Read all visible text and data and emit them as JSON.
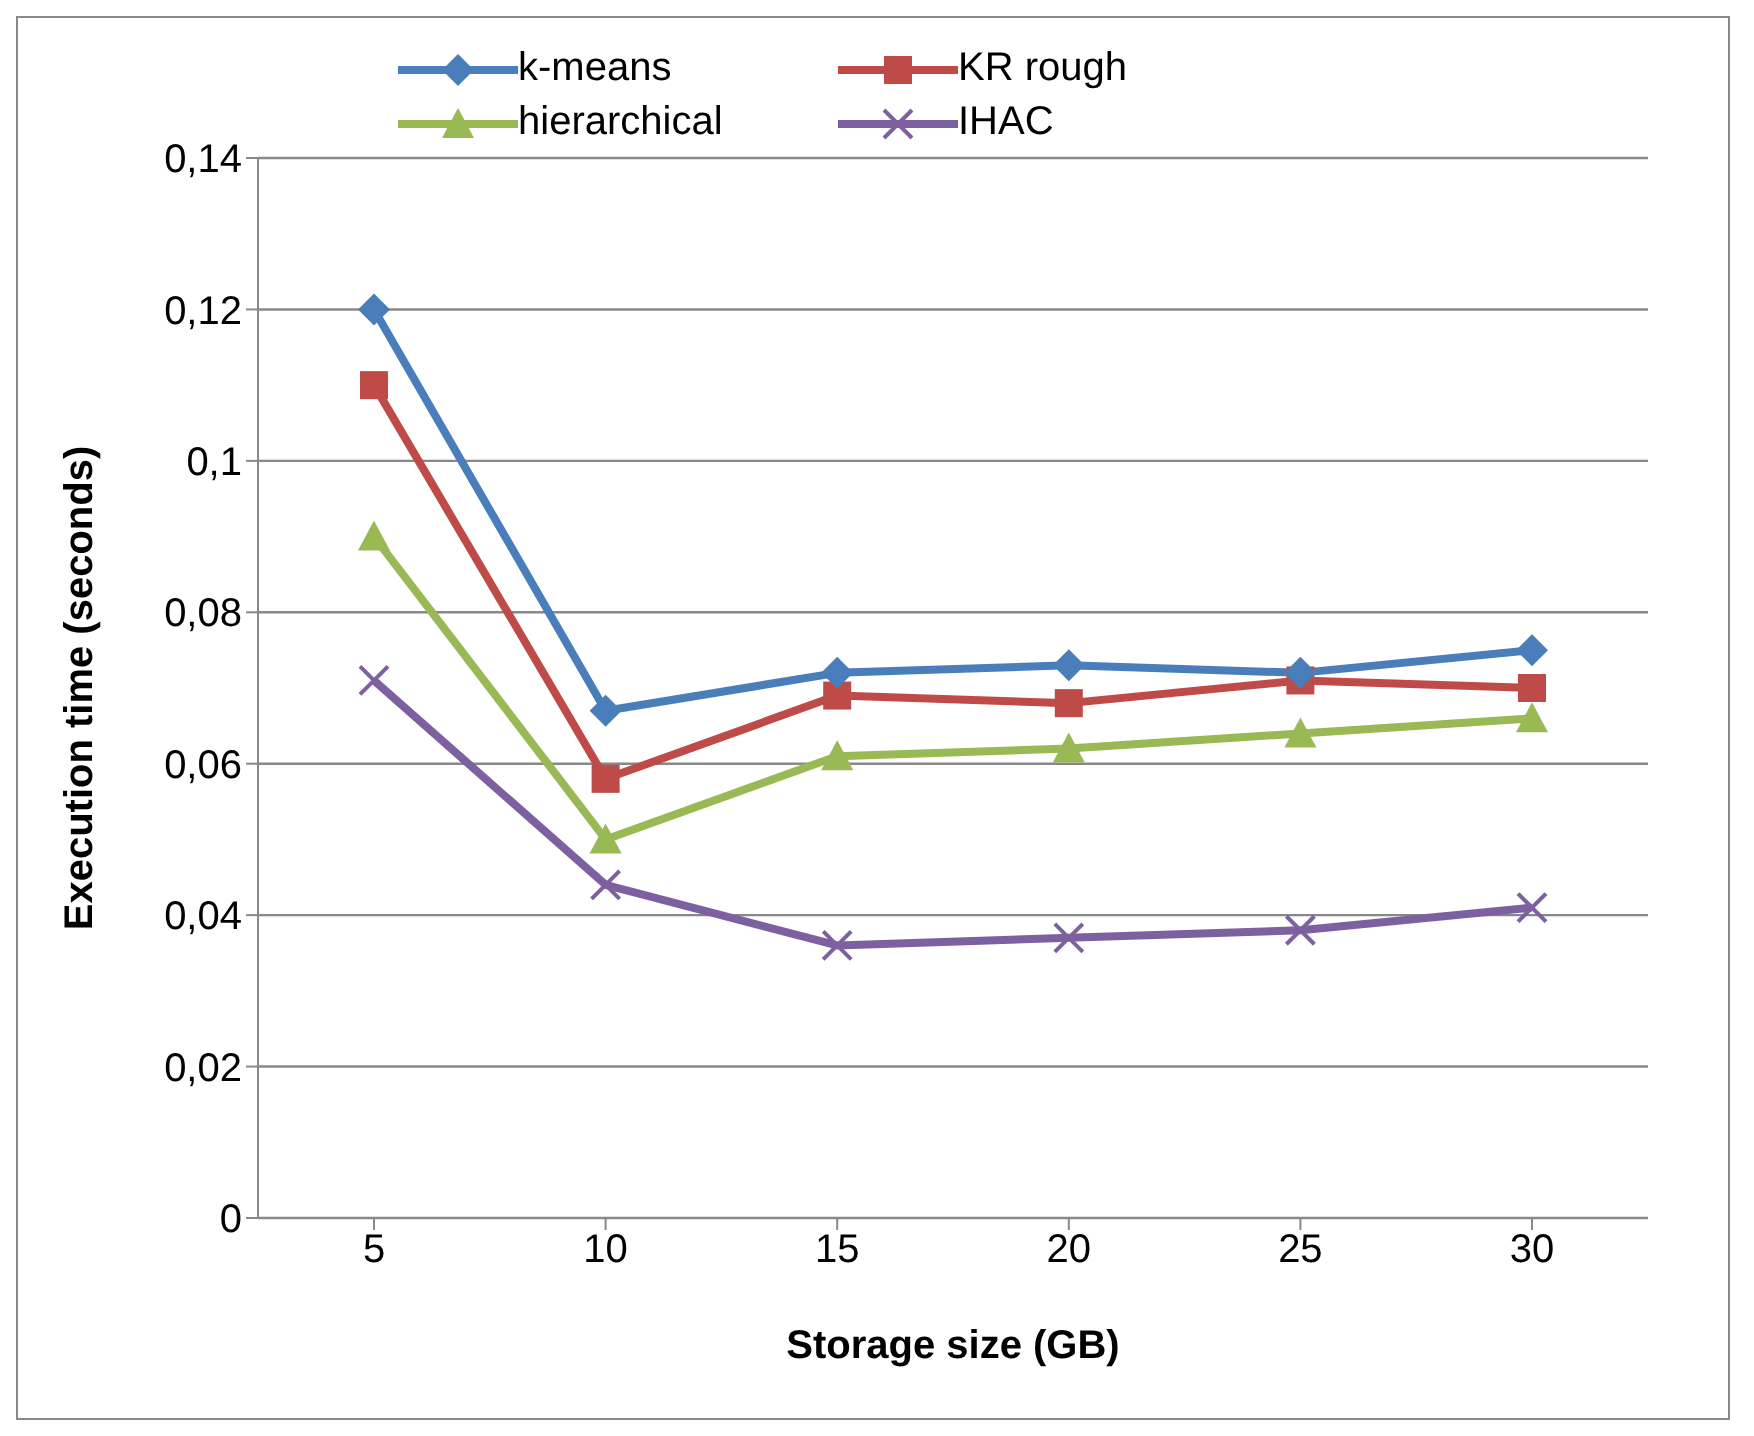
{
  "chart_data": {
    "type": "line",
    "xlabel": "Storage size (GB)",
    "ylabel": "Execution time (seconds)",
    "categories": [
      "5",
      "10",
      "15",
      "20",
      "25",
      "30"
    ],
    "series": [
      {
        "name": "k-means",
        "color": "#4a7ebb",
        "marker": "diamond",
        "values": [
          0.12,
          0.067,
          0.072,
          0.073,
          0.072,
          0.075
        ]
      },
      {
        "name": "KR rough",
        "color": "#be4b48",
        "marker": "square",
        "values": [
          0.11,
          0.058,
          0.069,
          0.068,
          0.071,
          0.07
        ]
      },
      {
        "name": "hierarchical",
        "color": "#98b954",
        "marker": "triangle",
        "values": [
          0.09,
          0.05,
          0.061,
          0.062,
          0.064,
          0.066
        ]
      },
      {
        "name": "IHAC",
        "color": "#7d60a0",
        "marker": "cross",
        "values": [
          0.071,
          0.044,
          0.036,
          0.037,
          0.038,
          0.041
        ]
      }
    ],
    "ylim": [
      0,
      0.14
    ],
    "yticks": [
      0,
      {
        "value": 0.02,
        "label": "0,02"
      },
      {
        "value": 0.04,
        "label": "0,04"
      },
      {
        "value": 0.06,
        "label": "0,06"
      },
      {
        "value": 0.08,
        "label": "0,08"
      },
      {
        "value": 0.1,
        "label": "0,1"
      },
      {
        "value": 0.12,
        "label": "0,12"
      },
      {
        "value": 0.14,
        "label": "0,14"
      }
    ],
    "grid": "y",
    "legend": "top",
    "line_style": "solid"
  }
}
